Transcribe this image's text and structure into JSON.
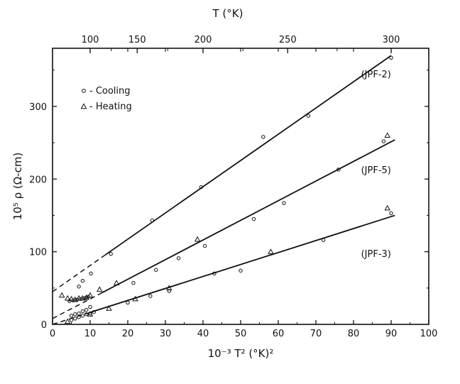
{
  "chart_data": {
    "type": "scatter",
    "xlabel": "10⁻³ T² (°K)²",
    "ylabel": "10⁵ ρ (Ω-cm)",
    "top_axis_label": "T (°K)",
    "xlim": [
      0,
      100
    ],
    "ylim": [
      0,
      380
    ],
    "x_ticks": [
      0,
      10,
      20,
      30,
      40,
      50,
      60,
      70,
      80,
      90,
      100
    ],
    "y_ticks": [
      100,
      200,
      300
    ],
    "top_ticks": [
      {
        "label": "100",
        "T": 100
      },
      {
        "label": "150",
        "T": 150
      },
      {
        "label": "200",
        "T": 200
      },
      {
        "label": "250",
        "T": 250
      },
      {
        "label": "300",
        "T": 300
      }
    ],
    "legend": {
      "position": "top-left",
      "entries": [
        {
          "marker": "circle",
          "text": "- Cooling"
        },
        {
          "marker": "triangle",
          "text": "- Heating"
        }
      ]
    },
    "series": [
      {
        "name": "(JPF-2)",
        "fit": {
          "x0": 0,
          "y0": 45,
          "x1": 90,
          "y1": 370,
          "dashed_until": 14
        },
        "cooling": [
          [
            15.5,
            97
          ],
          [
            26.5,
            143
          ],
          [
            39.5,
            189
          ],
          [
            56,
            258
          ],
          [
            68,
            287
          ],
          [
            90,
            367
          ]
        ],
        "heating": []
      },
      {
        "name": "(JPF-5)",
        "fit": {
          "x0": 0,
          "y0": 8,
          "x1": 91,
          "y1": 254,
          "dashed_until": 13
        },
        "cooling": [
          [
            5,
            12
          ],
          [
            6,
            14
          ],
          [
            7,
            15
          ],
          [
            8,
            18
          ],
          [
            9,
            20
          ],
          [
            10,
            24
          ],
          [
            21.5,
            57
          ],
          [
            27.5,
            75
          ],
          [
            33.5,
            91
          ],
          [
            40.5,
            108
          ],
          [
            53.5,
            145
          ],
          [
            61.5,
            167
          ],
          [
            76,
            213
          ],
          [
            88,
            252
          ]
        ],
        "heating": [
          [
            17,
            57
          ],
          [
            38.5,
            117
          ],
          [
            89,
            260
          ]
        ]
      },
      {
        "name": "(JPF-3)",
        "fit": {
          "x0": 0,
          "y0": 0,
          "x1": 91,
          "y1": 150,
          "dashed_until": 10
        },
        "cooling": [
          [
            5,
            6
          ],
          [
            6,
            8
          ],
          [
            7,
            10
          ],
          [
            8,
            12
          ],
          [
            9,
            14
          ],
          [
            10,
            15
          ],
          [
            11,
            17
          ],
          [
            20,
            30
          ],
          [
            26,
            39
          ],
          [
            31,
            46
          ],
          [
            43,
            70
          ],
          [
            50,
            74
          ],
          [
            72,
            116
          ],
          [
            90,
            153
          ]
        ],
        "heating": [
          [
            4,
            4
          ],
          [
            10,
            14
          ],
          [
            15,
            22
          ],
          [
            22,
            35
          ],
          [
            31,
            50
          ],
          [
            58,
            100
          ],
          [
            89,
            160
          ]
        ]
      },
      {
        "name": "",
        "fit": null,
        "cooling": [
          [
            4.5,
            32
          ],
          [
            5.5,
            33
          ],
          [
            6.5,
            34
          ],
          [
            7,
            52
          ],
          [
            7.5,
            35
          ],
          [
            8,
            60
          ],
          [
            8.5,
            36
          ],
          [
            9,
            37
          ],
          [
            9.5,
            38
          ],
          [
            10.2,
            70
          ]
        ],
        "heating": [
          [
            2.5,
            40
          ],
          [
            4,
            36
          ],
          [
            5,
            35
          ],
          [
            6,
            34
          ],
          [
            7,
            36
          ],
          [
            8,
            36
          ],
          [
            9,
            37
          ],
          [
            10,
            40
          ],
          [
            12.5,
            48
          ]
        ]
      }
    ]
  }
}
